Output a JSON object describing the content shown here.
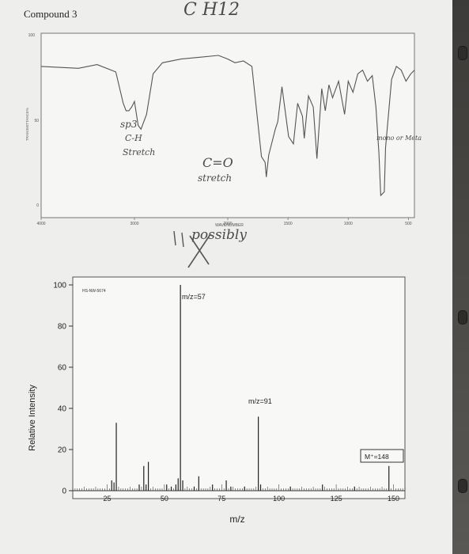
{
  "page": {
    "compound_label": "Compound 3",
    "formula_note": "C H12"
  },
  "ir": {
    "y_top_label": "100",
    "y_mid_label": "50",
    "y_bottom_label": "0",
    "y_axis_label": "TRANSMITTANCE%",
    "x_ticks": [
      "4000",
      "3000",
      "2000",
      "1500",
      "1000",
      "500"
    ],
    "x_axis_label": "WAVENUMBER",
    "line_color": "#555555",
    "annotations": {
      "sp3_note_1": "sp3",
      "sp3_note_2": "C-H",
      "sp3_note_3": "Stretch",
      "co_note_1": "C=O",
      "co_note_2": "stretch",
      "possibly_note": "possibly",
      "right_note": "mono or Meta"
    }
  },
  "ms": {
    "source_id": "HS-NW-5674",
    "y_axis_label": "Relative Intensity",
    "x_axis_label": "m/z",
    "annot_57": "m/z=57",
    "annot_91": "m/z=91",
    "annot_mplus": "M⁺=148",
    "bar_color": "#222222"
  },
  "chart_data": [
    {
      "type": "line",
      "title": "",
      "xlabel": "WAVENUMBER",
      "ylabel": "TRANSMITTANCE%",
      "xlim": [
        4000,
        450
      ],
      "ylim": [
        0,
        100
      ],
      "grid": false,
      "series": [
        {
          "x": [
            4000,
            3600,
            3400,
            3200,
            3120,
            3090,
            3060,
            3030,
            3000,
            2960,
            2930,
            2870,
            2800,
            2700,
            2500,
            2300,
            2100,
            2000,
            1940,
            1870,
            1800,
            1720,
            1690,
            1680,
            1660,
            1605,
            1585,
            1550,
            1495,
            1455,
            1420,
            1380,
            1365,
            1330,
            1290,
            1260,
            1220,
            1190,
            1160,
            1130,
            1080,
            1030,
            1000,
            960,
            920,
            880,
            840,
            800,
            770,
            745,
            730,
            700,
            690,
            640,
            600,
            560,
            520,
            480,
            450
          ],
          "y": [
            82,
            81,
            83,
            79,
            62,
            58,
            58,
            60,
            63,
            50,
            48,
            56,
            78,
            84,
            86,
            87,
            88,
            86,
            84,
            85,
            82,
            33,
            30,
            22,
            34,
            48,
            52,
            71,
            44,
            40,
            62,
            55,
            43,
            66,
            60,
            32,
            70,
            58,
            72,
            65,
            74,
            56,
            74,
            68,
            78,
            80,
            74,
            77,
            60,
            35,
            12,
            14,
            38,
            75,
            82,
            80,
            74,
            78,
            80
          ]
        }
      ]
    },
    {
      "type": "bar",
      "title": "",
      "xlabel": "m/z",
      "ylabel": "Relative Intensity",
      "xlim": [
        10,
        155
      ],
      "ylim": [
        0,
        100
      ],
      "x": [
        27,
        28,
        29,
        39,
        41,
        42,
        43,
        51,
        53,
        55,
        56,
        57,
        58,
        63,
        65,
        71,
        77,
        79,
        85,
        91,
        92,
        105,
        119,
        133,
        148
      ],
      "values": [
        5,
        4,
        33,
        3,
        12,
        3,
        14,
        3,
        2,
        3,
        6,
        100,
        5,
        2,
        7,
        3,
        5,
        2,
        2,
        36,
        3,
        2,
        3,
        2,
        12
      ]
    }
  ]
}
